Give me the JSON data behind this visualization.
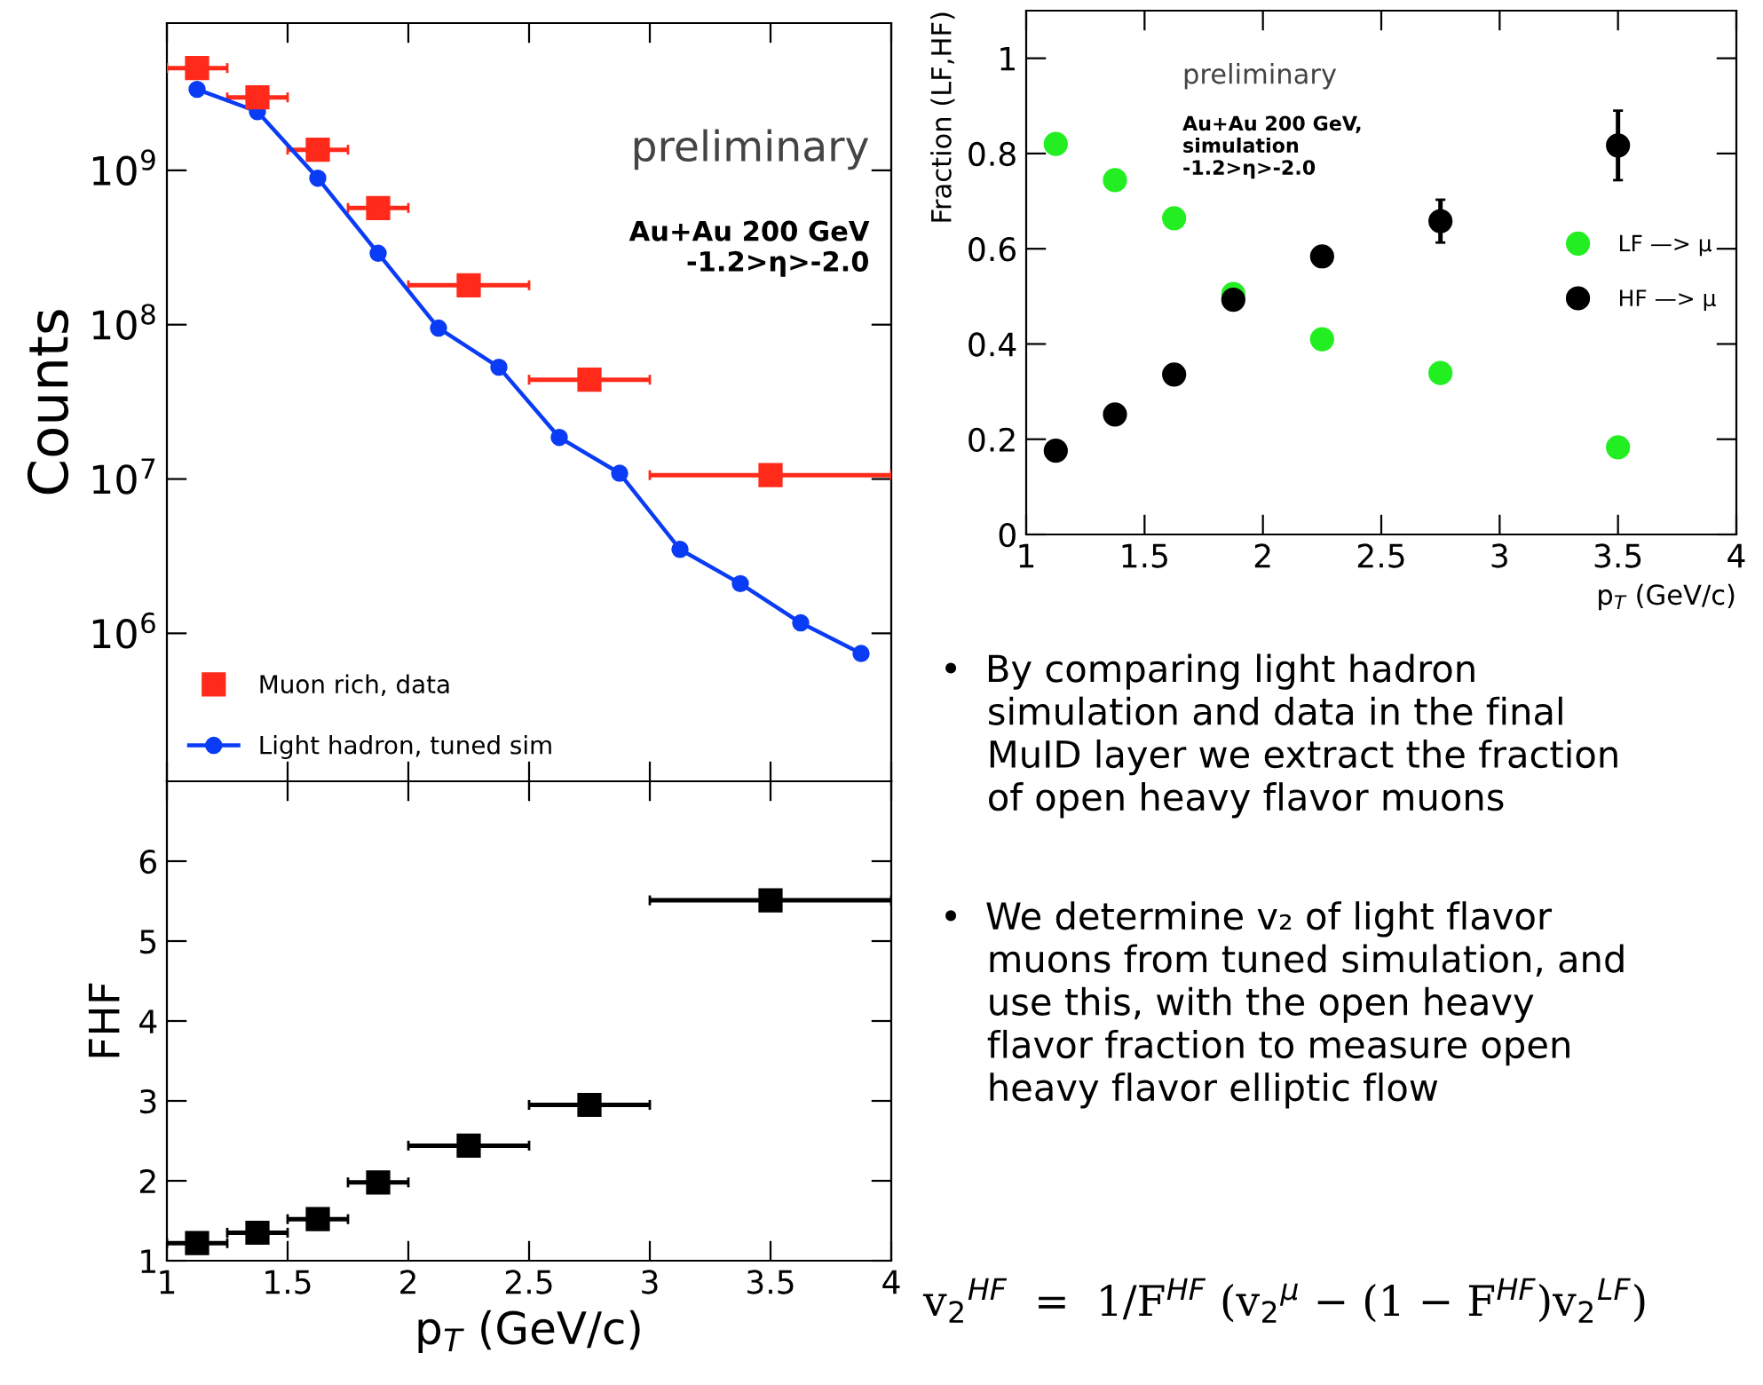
{
  "chart_data": [
    {
      "type": "line",
      "ylabel": "Counts",
      "log": "y",
      "xlim": [
        1,
        4
      ],
      "xticks": [
        1,
        1.5,
        2,
        2.5,
        3,
        3.5,
        4
      ],
      "ylim": [
        110000,
        9000000000
      ],
      "yticks": [
        {
          "value": 1000000,
          "label": "10$^{6}$"
        },
        {
          "value": 10000000,
          "label": "10$^{7}$"
        },
        {
          "value": 100000000,
          "label": "10$^{8}$"
        },
        {
          "value": 1000000000,
          "label": "10$^{9}$"
        }
      ],
      "tick_labels": "y",
      "legend": "bottom left",
      "grid": false,
      "annotations": [
        "preliminary",
        "Au+Au 200 GeV\n-1.2>η>-2.0"
      ],
      "series": [
        {
          "name": "Muon rich, data",
          "type": "scatter",
          "marker": "square",
          "color": "#ff2a1a",
          "x": [
            1.125,
            1.375,
            1.625,
            1.875,
            2.25,
            2.75,
            3.5
          ],
          "values": [
            4600000000,
            2970000000,
            1360000000,
            570000000,
            180000000,
            44000000,
            10600000
          ],
          "xerrors": [
            0.125,
            0.125,
            0.125,
            0.125,
            0.25,
            0.25,
            0.5
          ]
        },
        {
          "name": "Light hadron, tuned sim",
          "type": "line",
          "marker": "circle",
          "color": "#0a3cf5",
          "x": [
            1.125,
            1.375,
            1.625,
            1.875,
            2.125,
            2.375,
            2.625,
            2.875,
            3.125,
            3.375,
            3.625,
            3.875
          ],
          "values": [
            3350000000,
            2400000000,
            890000000,
            290000000,
            95000000,
            53000000,
            18600000,
            10900000,
            3500000,
            2100000,
            1170000,
            740000
          ]
        }
      ]
    },
    {
      "type": "scatter",
      "ylabel": "Fraction (LF,HF)",
      "xlabel": "p$_{T}$ (GeV/c)",
      "xlim": [
        1,
        4
      ],
      "xticks": [
        1,
        1.5,
        2,
        2.5,
        3,
        3.5,
        4
      ],
      "ylim": [
        0,
        1.1
      ],
      "yticks": [
        0,
        0.2,
        0.4,
        0.6,
        0.8,
        1
      ],
      "legend": "right",
      "grid": false,
      "marker": "circle",
      "annotations": [
        "preliminary",
        "Au+Au 200 GeV,\nsimulation\n-1.2>η>-2.0"
      ],
      "x": [
        1.125,
        1.375,
        1.625,
        1.875,
        2.25,
        2.75,
        3.5
      ],
      "series": [
        {
          "name": "LF —> μ",
          "color": "#22ee22",
          "values": [
            0.82,
            0.744,
            0.664,
            0.505,
            0.41,
            0.339,
            0.183
          ]
        },
        {
          "name": "HF —> μ",
          "color": "#000000",
          "values": [
            0.176,
            0.252,
            0.336,
            0.493,
            0.584,
            0.658,
            0.817
          ],
          "errors": [
            null,
            null,
            null,
            null,
            null,
            0.045,
            0.073
          ]
        }
      ]
    },
    {
      "type": "scatter",
      "ylabel": "FHF",
      "xlabel": "p$_{T}$ (GeV/c)",
      "xlim": [
        1,
        4
      ],
      "xticks": [
        1,
        1.5,
        2,
        2.5,
        3,
        3.5,
        4
      ],
      "ylim": [
        1,
        7
      ],
      "yticks": [
        1,
        2,
        3,
        4,
        5,
        6
      ],
      "grid": false,
      "marker": "square",
      "series": [
        {
          "color": "#000000",
          "x": [
            1.125,
            1.375,
            1.625,
            1.875,
            2.25,
            2.75,
            3.5
          ],
          "values": [
            1.22,
            1.35,
            1.52,
            1.98,
            2.44,
            2.95,
            5.51
          ],
          "xerrors": [
            0.125,
            0.125,
            0.125,
            0.125,
            0.25,
            0.25,
            0.5
          ],
          "errors": [
            null,
            null,
            null,
            null,
            null,
            null,
            0.1
          ]
        }
      ]
    },
    {
      "type": "other",
      "annotations": [
        "•  By comparing light hadron\n    simulation and data in the final\n    MuID layer we extract the fraction\n    of open heavy flavor muons",
        "•  We determine v₂ of light flavor\n    muons from tuned simulation, and\n    use this, with the open heavy\n    flavor fraction to measure open\n    heavy flavor elliptic flow",
        "v$_{2}$$^{HF}$  =  1/F$^{HF}$ (v$_{2}$$^{μ}$ − (1 − F$^{HF}$)v$_{2}$$^{LF}$)"
      ]
    }
  ]
}
